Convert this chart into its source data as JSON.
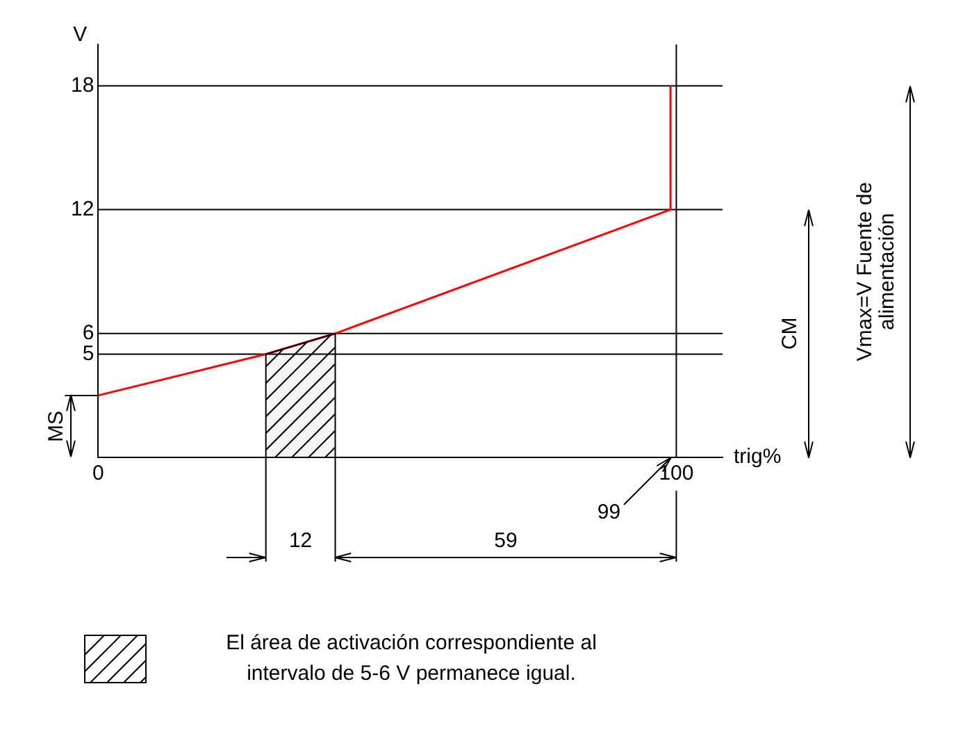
{
  "chart_data": {
    "type": "line",
    "xlabel": "trig%",
    "ylabel": "V",
    "series": [
      {
        "x": [
          0,
          29,
          41,
          99,
          99
        ],
        "values": [
          3,
          5,
          6,
          12,
          18
        ],
        "color": "#ff0000"
      },
      {
        "type": "area",
        "name": "El área de activación correspondiente al intervalo de 5-6 V permanece igual.",
        "x": [
          29,
          41
        ],
        "values": [
          5,
          6
        ],
        "color": "#000000"
      }
    ],
    "xlim": [
      0,
      108
    ],
    "xticks": [
      0,
      100
    ],
    "ylim": [
      0,
      20
    ],
    "yticks": [
      5,
      6,
      12,
      18
    ],
    "grid": false,
    "legend": "bottom",
    "ref_lines": [
      {
        "axis": "y",
        "value": 18
      },
      {
        "axis": "y",
        "value": 12
      },
      {
        "axis": "y",
        "value": 6
      },
      {
        "axis": "y",
        "value": 5
      },
      {
        "axis": "x",
        "value": 100
      }
    ],
    "annotations": [
      "MS",
      "CM",
      "Vmax=V Fuente de alimentación",
      "12",
      "59",
      {
        "text": "99",
        "x": 99,
        "y": 0
      }
    ]
  }
}
